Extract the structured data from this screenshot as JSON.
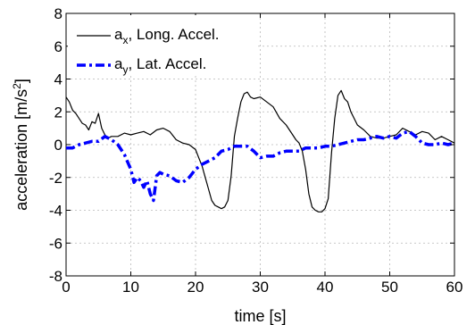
{
  "chart_data": {
    "type": "line",
    "xlabel": "time [s]",
    "ylabel": "acceleration [m/s",
    "ylabel_sup": "2",
    "ylabel_close": "]",
    "xlim": [
      0,
      60
    ],
    "ylim": [
      -8,
      8
    ],
    "x_ticks": [
      0,
      10,
      20,
      30,
      40,
      50,
      60
    ],
    "y_ticks": [
      -8,
      -6,
      -4,
      -2,
      0,
      2,
      4,
      6,
      8
    ],
    "grid": true,
    "legend_position": "top-left",
    "series": [
      {
        "name": "a",
        "name_sub": "x",
        "name_rest": ", Long. Accel.",
        "color": "#000000",
        "style": "solid",
        "x": [
          0,
          0.5,
          1,
          1.5,
          2,
          2.5,
          3,
          3.5,
          4,
          4.5,
          5,
          5.5,
          6,
          6.5,
          7,
          8,
          9,
          10,
          11,
          12,
          13,
          14,
          15,
          16,
          17,
          18,
          19,
          20,
          20.5,
          21,
          21.5,
          22,
          22.5,
          23,
          23.5,
          24,
          24.5,
          25,
          25.5,
          26,
          26.5,
          27,
          27.5,
          28,
          28.5,
          29,
          30,
          31,
          32,
          33,
          34,
          35,
          35.5,
          36,
          36.5,
          37,
          37.5,
          38,
          38.5,
          39,
          39.5,
          40,
          40.5,
          41,
          41.5,
          42,
          42.5,
          43,
          43.5,
          44,
          45,
          46,
          47,
          48,
          49,
          50,
          51,
          52,
          53,
          54,
          55,
          56,
          57,
          58,
          59,
          60
        ],
        "y": [
          2.9,
          2.6,
          2.1,
          1.9,
          1.6,
          1.3,
          1.2,
          0.9,
          1.4,
          1.3,
          1.9,
          1.0,
          0.6,
          0.4,
          0.5,
          0.5,
          0.7,
          0.6,
          0.7,
          0.8,
          0.6,
          0.9,
          1.0,
          0.8,
          0.3,
          0.1,
          0.0,
          -0.3,
          -0.8,
          -1.3,
          -2.0,
          -2.7,
          -3.4,
          -3.7,
          -3.8,
          -3.9,
          -3.8,
          -3.4,
          -1.9,
          0.5,
          1.6,
          2.6,
          3.1,
          3.2,
          2.9,
          2.8,
          2.9,
          2.6,
          2.3,
          1.6,
          1.2,
          0.6,
          0.3,
          0.1,
          -0.4,
          -1.5,
          -3.0,
          -3.8,
          -4.0,
          -4.1,
          -4.1,
          -3.9,
          -3.3,
          -0.5,
          1.6,
          3.0,
          3.3,
          2.8,
          2.6,
          2.0,
          1.2,
          0.9,
          0.5,
          0.4,
          0.4,
          0.5,
          0.6,
          1.0,
          0.8,
          0.6,
          0.8,
          0.7,
          0.3,
          0.5,
          0.3,
          0.1
        ]
      },
      {
        "name": "a",
        "name_sub": "y",
        "name_rest": ", Lat. Accel.",
        "color": "#0000ff",
        "style": "dashdot",
        "x": [
          0,
          1,
          2,
          3,
          4,
          5,
          6,
          7,
          8,
          9,
          10,
          10.5,
          11,
          11.5,
          12,
          12.5,
          13,
          13.5,
          14,
          14.5,
          15,
          16,
          17,
          18,
          19,
          20,
          21,
          22,
          23,
          24,
          25,
          26,
          27,
          28,
          29,
          30,
          31,
          32,
          33,
          34,
          35,
          36,
          37,
          38,
          39,
          40,
          41,
          42,
          43,
          44,
          45,
          46,
          47,
          48,
          49,
          50,
          51,
          52,
          53,
          54,
          55,
          56,
          57,
          58,
          59,
          60
        ],
        "y": [
          -0.2,
          -0.2,
          0.0,
          0.1,
          0.2,
          0.2,
          0.5,
          0.3,
          0.0,
          -0.6,
          -1.5,
          -2.3,
          -2.0,
          -2.2,
          -2.6,
          -2.2,
          -3.0,
          -3.4,
          -1.9,
          -1.7,
          -1.8,
          -1.9,
          -2.2,
          -2.3,
          -2.0,
          -1.5,
          -1.2,
          -1.0,
          -0.8,
          -0.4,
          -0.3,
          -0.1,
          -0.1,
          -0.1,
          -0.4,
          -0.8,
          -0.7,
          -0.7,
          -0.5,
          -0.4,
          -0.4,
          -0.4,
          -0.2,
          -0.2,
          -0.2,
          -0.1,
          -0.1,
          0.0,
          0.1,
          0.2,
          0.3,
          0.3,
          0.4,
          0.5,
          0.4,
          0.5,
          0.4,
          0.7,
          0.8,
          0.5,
          0.1,
          0.0,
          0.0,
          0.1,
          0.0,
          0.1
        ]
      }
    ]
  }
}
